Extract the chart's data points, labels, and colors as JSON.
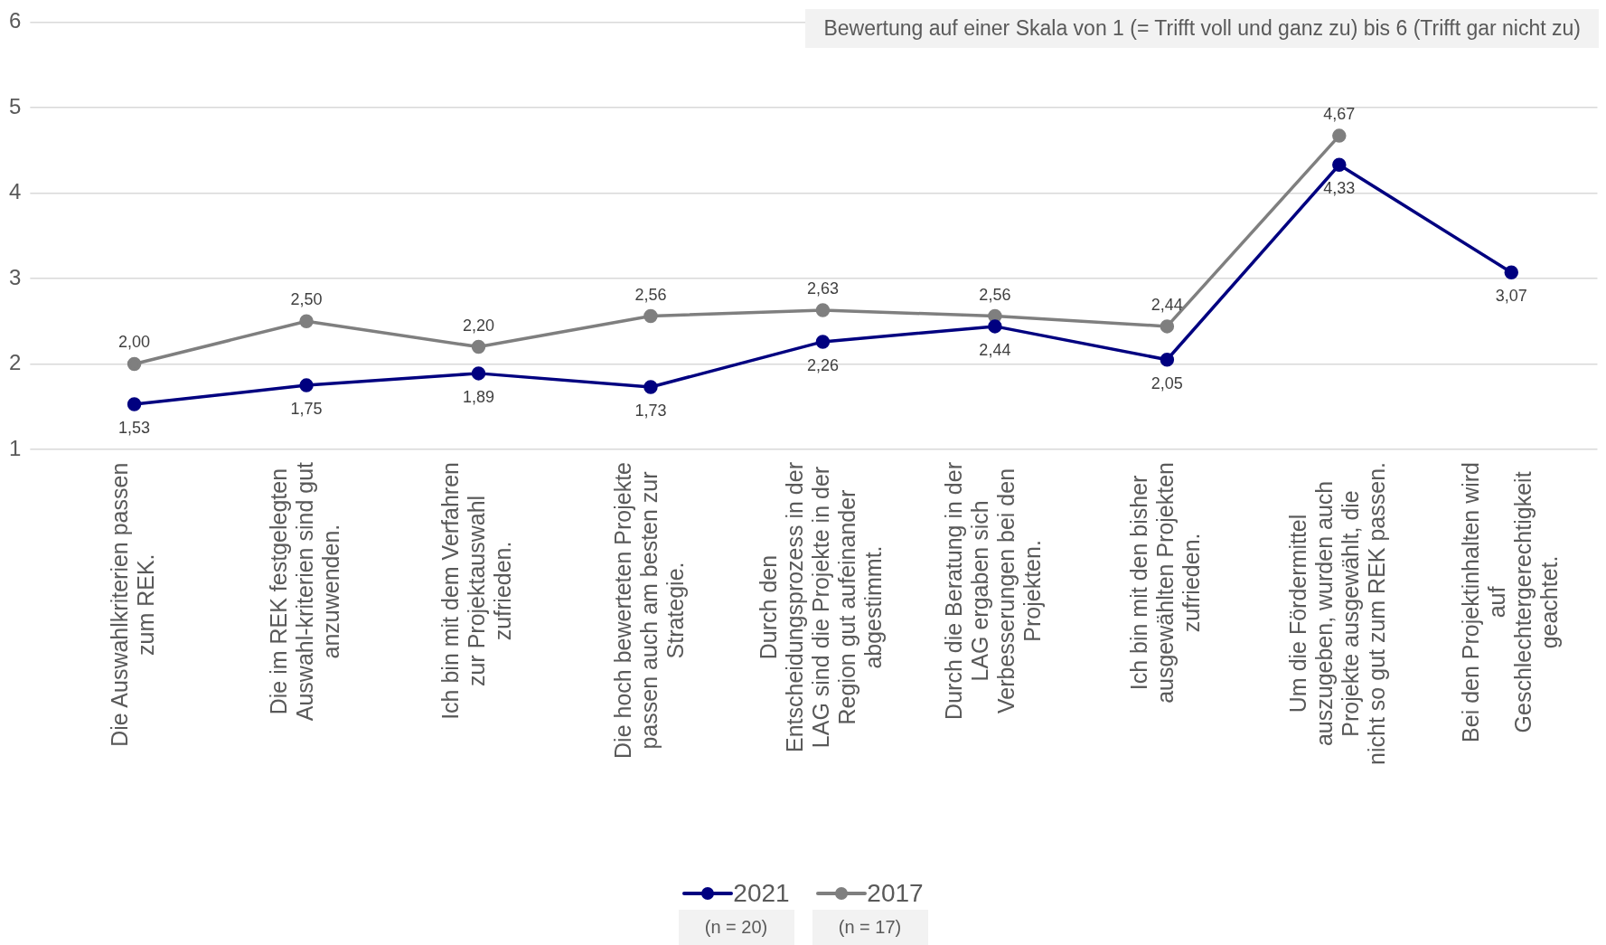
{
  "chart_data": {
    "type": "line",
    "categories": [
      "Die Auswahlkriterien passen zum REK.",
      "Die im REK festgelegten Auswahl-kriterien sind gut anzuwenden.",
      "Ich bin mit dem Verfahren zur Projektauswahl zufrieden.",
      "Die hoch bewerteten Projekte passen auch am besten zur Strategie.",
      "Durch den Entscheidungsprozess in der LAG sind die Projekte in der Region gut aufeinander abgestimmt.",
      "Durch die Beratung in der LAG ergaben sich Verbesserungen bei den Projekten.",
      "Ich bin mit den bisher ausgewählten Projekten zufrieden.",
      "Um die Fördermittel auszugeben, wurden auch Projekte ausgewählt, die nicht so gut zum REK passen.",
      "Bei den Projektinhalten wird auf Geschlechtergerechtigkeit geachtet."
    ],
    "series": [
      {
        "name": "2021",
        "color": "#000080",
        "values": [
          1.53,
          1.75,
          1.89,
          1.73,
          2.26,
          2.44,
          2.05,
          4.33,
          3.07
        ],
        "value_labels": [
          "1,53",
          "1,75",
          "1,89",
          "1,73",
          "2,26",
          "2,44",
          "2,05",
          "4,33",
          "3,07"
        ]
      },
      {
        "name": "2017",
        "color": "#7f7f7f",
        "values": [
          2.0,
          2.5,
          2.2,
          2.56,
          2.63,
          2.56,
          2.44,
          4.67,
          null
        ],
        "value_labels": [
          "2,00",
          "2,50",
          "2,20",
          "2,56",
          "2,63",
          "2,56",
          "2,44",
          "4,67",
          null
        ]
      }
    ],
    "ylim": [
      1,
      6
    ],
    "yticks": [
      1,
      2,
      3,
      4,
      5,
      6
    ],
    "grid": "y",
    "legend": "bottom",
    "marker": "circle",
    "line_style": "solid",
    "annotations": [
      "Bewertung auf einer Skala von 1 (= Trifft voll und ganz zu) bis 6 (Trifft gar nicht zu)",
      "(n = 20)",
      "(n = 17)"
    ]
  }
}
